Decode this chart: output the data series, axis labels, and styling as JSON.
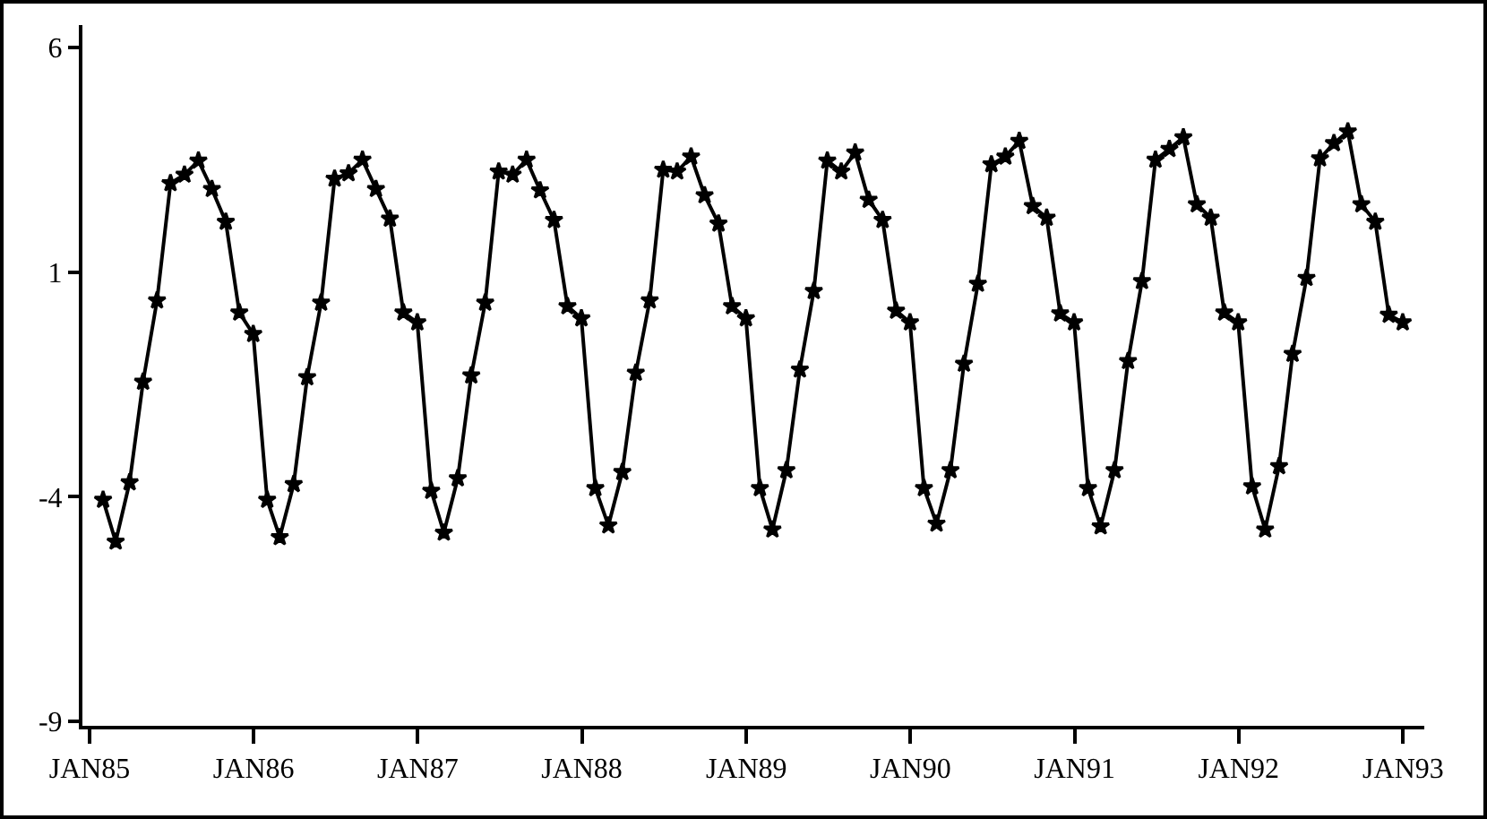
{
  "chart_data": {
    "type": "line",
    "x": [
      "1985-01-31",
      "1985-02-28",
      "1985-03-31",
      "1985-04-30",
      "1985-05-31",
      "1985-06-30",
      "1985-07-31",
      "1985-08-31",
      "1985-09-30",
      "1985-10-31",
      "1985-11-30",
      "1985-12-31",
      "1986-01-31",
      "1986-02-28",
      "1986-03-31",
      "1986-04-30",
      "1986-05-31",
      "1986-06-30",
      "1986-07-31",
      "1986-08-31",
      "1986-09-30",
      "1986-10-31",
      "1986-11-30",
      "1986-12-31",
      "1987-01-31",
      "1987-02-28",
      "1987-03-31",
      "1987-04-30",
      "1987-05-31",
      "1987-06-30",
      "1987-07-31",
      "1987-08-31",
      "1987-09-30",
      "1987-10-31",
      "1987-11-30",
      "1987-12-31",
      "1988-01-31",
      "1988-02-29",
      "1988-03-31",
      "1988-04-30",
      "1988-05-31",
      "1988-06-30",
      "1988-07-31",
      "1988-08-31",
      "1988-09-30",
      "1988-10-31",
      "1988-11-30",
      "1988-12-31",
      "1989-01-31",
      "1989-02-28",
      "1989-03-31",
      "1989-04-30",
      "1989-05-31",
      "1989-06-30",
      "1989-07-31",
      "1989-08-31",
      "1989-09-30",
      "1989-10-31",
      "1989-11-30",
      "1989-12-31",
      "1990-01-31",
      "1990-02-28",
      "1990-03-31",
      "1990-04-30",
      "1990-05-31",
      "1990-06-30",
      "1990-07-31",
      "1990-08-31",
      "1990-09-30",
      "1990-10-31",
      "1990-11-30",
      "1990-12-31",
      "1991-01-31",
      "1991-02-28",
      "1991-03-31",
      "1991-04-30",
      "1991-05-31",
      "1991-06-30",
      "1991-07-31",
      "1991-08-31",
      "1991-09-30",
      "1991-10-31",
      "1991-11-30",
      "1991-12-31",
      "1992-01-31",
      "1992-02-29",
      "1992-03-31",
      "1992-04-30",
      "1992-05-31",
      "1992-06-30",
      "1992-07-31",
      "1992-08-31",
      "1992-09-30",
      "1992-10-31",
      "1992-11-30",
      "1992-12-31"
    ],
    "series": [
      {
        "color": "#000000",
        "values": [
          -4.07,
          -5.0,
          -3.68,
          -1.44,
          0.37,
          2.98,
          3.17,
          3.48,
          2.85,
          2.12,
          0.1,
          -0.38,
          -4.07,
          -4.9,
          -3.72,
          -1.34,
          0.32,
          3.08,
          3.2,
          3.5,
          2.85,
          2.19,
          0.1,
          -0.12,
          -3.87,
          -4.8,
          -3.59,
          -1.3,
          0.32,
          3.24,
          3.17,
          3.5,
          2.82,
          2.16,
          0.24,
          -0.03,
          -3.81,
          -4.64,
          -3.45,
          -1.24,
          0.37,
          3.28,
          3.24,
          3.57,
          2.71,
          2.08,
          0.24,
          -0.03,
          -3.81,
          -4.73,
          -3.41,
          -1.17,
          0.58,
          3.48,
          3.24,
          3.66,
          2.61,
          2.16,
          0.14,
          -0.12,
          -3.81,
          -4.6,
          -3.41,
          -1.04,
          0.74,
          3.4,
          3.57,
          3.92,
          2.47,
          2.21,
          0.08,
          -0.12,
          -3.81,
          -4.66,
          -3.41,
          -0.98,
          0.8,
          3.5,
          3.74,
          4.0,
          2.51,
          2.21,
          0.1,
          -0.12,
          -3.77,
          -4.73,
          -3.32,
          -0.82,
          0.87,
          3.53,
          3.87,
          4.13,
          2.51,
          2.12,
          0.05,
          -0.12
        ]
      }
    ],
    "xlim": [
      "1984-12-16",
      "1993-02-17"
    ],
    "xticks": [
      {
        "value": "1985-01-01",
        "label": "JAN85"
      },
      {
        "value": "1986-01-01",
        "label": "JAN86"
      },
      {
        "value": "1987-01-01",
        "label": "JAN87"
      },
      {
        "value": "1988-01-01",
        "label": "JAN88"
      },
      {
        "value": "1989-01-01",
        "label": "JAN89"
      },
      {
        "value": "1990-01-01",
        "label": "JAN90"
      },
      {
        "value": "1991-01-01",
        "label": "JAN91"
      },
      {
        "value": "1992-01-01",
        "label": "JAN92"
      },
      {
        "value": "1993-01-01",
        "label": "JAN93"
      }
    ],
    "ylim": [
      -9.1,
      6.5
    ],
    "yticks": [
      -9,
      -4,
      1,
      6
    ],
    "grid": false,
    "marker": "star",
    "line_style": "solid"
  }
}
